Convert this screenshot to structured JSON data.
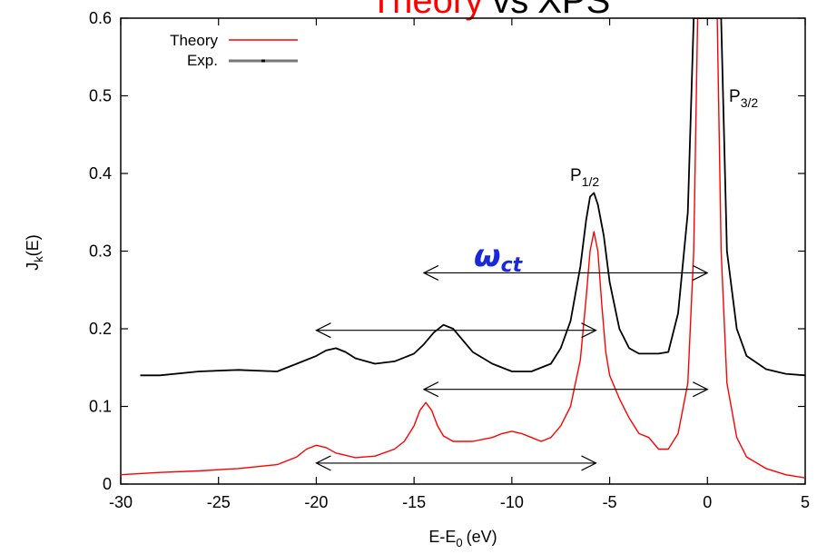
{
  "title": {
    "part1": "Theory",
    "part2": "vs",
    "part3": "XPS",
    "part1_color": "#ff0000",
    "rest_color": "#000000"
  },
  "axes": {
    "xlabel_main": "E-E",
    "xlabel_sub": "0",
    "xlabel_unit": "(eV)",
    "ylabel_main": "J",
    "ylabel_sub": "k",
    "ylabel_arg": "(E)"
  },
  "legend": {
    "theory": "Theory",
    "exp": "Exp."
  },
  "annotations": {
    "p12_main": "P",
    "p12_sub": "1/2",
    "p32_main": "P",
    "p32_sub": "3/2",
    "omega_main": "ω",
    "omega_sub": "ct"
  },
  "colors": {
    "theory": "#ff0000",
    "exp": "#000000",
    "omega": "#1a28d8"
  },
  "chart_data": {
    "type": "line",
    "title": "Theory vs XPS",
    "xlabel": "E-E0 (eV)",
    "ylabel": "Jk(E)",
    "xlim": [
      -30,
      5
    ],
    "ylim": [
      0,
      0.6
    ],
    "xticks": [
      -30,
      -25,
      -20,
      -15,
      -10,
      -5,
      0,
      5
    ],
    "yticks": [
      0,
      0.1,
      0.2,
      0.3,
      0.4,
      0.5,
      0.6
    ],
    "xtick_labels": [
      "-30",
      "-25",
      "-20",
      "-15",
      "-10",
      "-5",
      "0",
      "5"
    ],
    "ytick_labels": [
      "0",
      "0.1",
      "0.2",
      "0.3",
      "0.4",
      "0.5",
      "0.6"
    ],
    "grid": false,
    "legend_position": "top-left",
    "series": [
      {
        "name": "Theory",
        "color": "#ff0000",
        "x": [
          -30,
          -28,
          -26,
          -24,
          -22,
          -21,
          -20.5,
          -20,
          -19.5,
          -19,
          -18,
          -17,
          -16,
          -15.5,
          -15,
          -14.7,
          -14.4,
          -14.1,
          -13.8,
          -13.5,
          -13,
          -12,
          -11,
          -10.5,
          -10,
          -9.5,
          -9,
          -8.5,
          -8,
          -7.5,
          -7,
          -6.5,
          -6.2,
          -6,
          -5.8,
          -5.6,
          -5.4,
          -5.2,
          -5,
          -4.5,
          -4,
          -3.5,
          -3,
          -2.5,
          -2,
          -1.5,
          -1,
          -0.7,
          -0.5,
          -0.3,
          -0.15,
          0,
          0.15,
          0.3,
          0.5,
          0.7,
          1,
          1.5,
          2,
          3,
          4,
          5
        ],
        "y": [
          0.012,
          0.015,
          0.017,
          0.02,
          0.025,
          0.035,
          0.045,
          0.05,
          0.047,
          0.04,
          0.034,
          0.036,
          0.045,
          0.055,
          0.075,
          0.095,
          0.105,
          0.095,
          0.075,
          0.062,
          0.055,
          0.055,
          0.06,
          0.065,
          0.068,
          0.065,
          0.06,
          0.055,
          0.06,
          0.075,
          0.1,
          0.16,
          0.24,
          0.3,
          0.325,
          0.3,
          0.23,
          0.17,
          0.14,
          0.11,
          0.085,
          0.065,
          0.06,
          0.045,
          0.045,
          0.065,
          0.13,
          0.3,
          0.6,
          0.6,
          0.6,
          0.6,
          0.6,
          0.6,
          0.6,
          0.3,
          0.13,
          0.06,
          0.035,
          0.02,
          0.012,
          0.008
        ]
      },
      {
        "name": "Exp.",
        "color": "#000000",
        "x": [
          -29,
          -28,
          -26,
          -24,
          -22,
          -21,
          -20,
          -19.5,
          -19,
          -18.5,
          -18,
          -17,
          -16,
          -15,
          -14.5,
          -14,
          -13.5,
          -13,
          -12.5,
          -12,
          -11,
          -10,
          -9,
          -8,
          -7.5,
          -7,
          -6.5,
          -6.2,
          -6,
          -5.8,
          -5.6,
          -5.3,
          -5,
          -4.5,
          -4,
          -3.5,
          -3,
          -2.5,
          -2,
          -1.5,
          -1,
          -0.7,
          -0.5,
          -0.3,
          0,
          0.3,
          0.5,
          0.7,
          1,
          1.5,
          2,
          3,
          4,
          5
        ],
        "y": [
          0.14,
          0.14,
          0.145,
          0.147,
          0.145,
          0.155,
          0.165,
          0.172,
          0.175,
          0.17,
          0.162,
          0.155,
          0.158,
          0.168,
          0.18,
          0.195,
          0.205,
          0.2,
          0.185,
          0.17,
          0.155,
          0.145,
          0.145,
          0.155,
          0.175,
          0.21,
          0.28,
          0.34,
          0.37,
          0.375,
          0.36,
          0.32,
          0.26,
          0.2,
          0.175,
          0.168,
          0.168,
          0.168,
          0.17,
          0.22,
          0.35,
          0.6,
          0.6,
          0.6,
          0.6,
          0.6,
          0.6,
          0.6,
          0.3,
          0.2,
          0.165,
          0.148,
          0.142,
          0.14
        ]
      }
    ],
    "arrows": [
      {
        "x1": -14.5,
        "x2": 0,
        "y": 0.272
      },
      {
        "x1": -20,
        "x2": -5.7,
        "y": 0.198
      },
      {
        "x1": -14.5,
        "x2": 0,
        "y": 0.122
      },
      {
        "x1": -20,
        "x2": -5.7,
        "y": 0.027
      }
    ]
  }
}
